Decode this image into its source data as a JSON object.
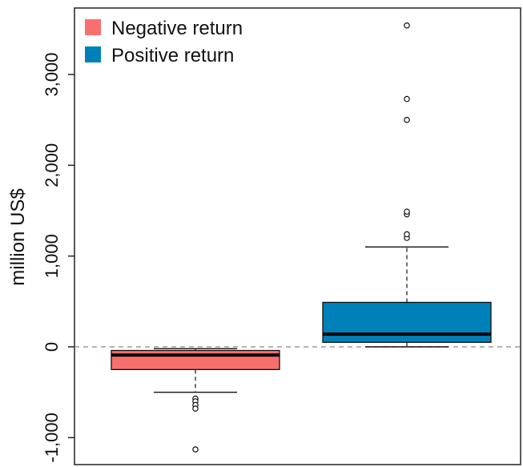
{
  "chart_data": {
    "type": "box",
    "ylabel": "million US$",
    "y_ticks": [
      -1000,
      0,
      1000,
      2000,
      3000
    ],
    "y_tick_labels": [
      "-1,000",
      "0",
      "1,000",
      "2,000",
      "3,000"
    ],
    "ylim": [
      -1280,
      3700
    ],
    "reference_line": {
      "y": 0,
      "style": "dashed"
    },
    "legend": {
      "placement": "top-left"
    },
    "series": [
      {
        "name": "Negative return",
        "color": "#F8706D",
        "whisker_low": -500,
        "q1": -250,
        "median": -90,
        "q3": -40,
        "whisker_high": -20,
        "outliers": [
          -570,
          -600,
          -640,
          -680,
          -1130
        ]
      },
      {
        "name": "Positive return",
        "color": "#0080B8",
        "whisker_low": 0,
        "q1": 50,
        "median": 140,
        "q3": 490,
        "whisker_high": 1100,
        "outliers": [
          1200,
          1240,
          1460,
          1490,
          2500,
          2730,
          3540
        ]
      }
    ]
  }
}
